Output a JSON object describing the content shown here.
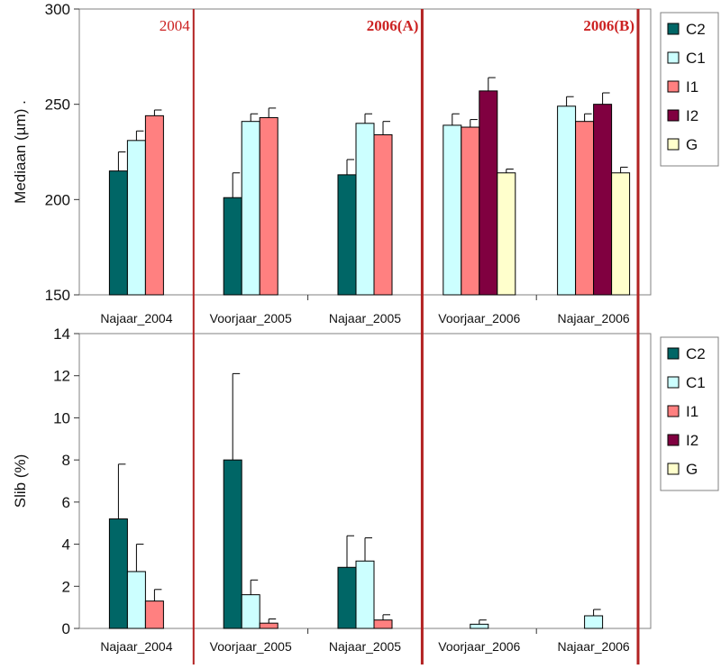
{
  "colors": {
    "C2": "#006666",
    "C1": "#ccffff",
    "I1": "#ff8080",
    "I2": "#800040",
    "G": "#ffffcc",
    "marker_line": "#b22222",
    "marker_text": "#cc2222"
  },
  "markers": [
    {
      "label": "2004",
      "after_category": 0,
      "bold": false
    },
    {
      "label": "2006(A)",
      "after_category": 2,
      "bold": true
    },
    {
      "label": "2006(B)",
      "after_category": 4,
      "bold": true
    }
  ],
  "chart_data": [
    {
      "type": "bar",
      "ylabel": "Mediaan (µm) .",
      "ylim": [
        150,
        300
      ],
      "yticks": [
        150,
        200,
        250,
        300
      ],
      "categories": [
        "Najaar_2004",
        "Voorjaar_2005",
        "Najaar_2005",
        "Voorjaar_2006",
        "Najaar_2006"
      ],
      "legend_position": "right",
      "series": [
        {
          "name": "C2",
          "values": [
            215,
            201,
            213,
            null,
            null
          ],
          "errors": [
            10,
            13,
            8,
            null,
            null
          ]
        },
        {
          "name": "C1",
          "values": [
            231,
            241,
            240,
            239,
            249
          ],
          "errors": [
            5,
            4,
            5,
            6,
            5
          ]
        },
        {
          "name": "I1",
          "values": [
            244,
            243,
            234,
            238,
            241
          ],
          "errors": [
            3,
            5,
            7,
            4,
            4
          ]
        },
        {
          "name": "I2",
          "values": [
            null,
            null,
            null,
            257,
            250
          ],
          "errors": [
            null,
            null,
            null,
            7,
            6
          ]
        },
        {
          "name": "G",
          "values": [
            null,
            null,
            null,
            214,
            214
          ],
          "errors": [
            null,
            null,
            null,
            2,
            3
          ]
        }
      ]
    },
    {
      "type": "bar",
      "ylabel": "Slib (%)",
      "ylim": [
        0,
        14
      ],
      "yticks": [
        0,
        2,
        4,
        6,
        8,
        10,
        12,
        14
      ],
      "categories": [
        "Najaar_2004",
        "Voorjaar_2005",
        "Najaar_2005",
        "Voorjaar_2006",
        "Najaar_2006"
      ],
      "legend_position": "right",
      "series": [
        {
          "name": "C2",
          "values": [
            5.2,
            8.0,
            2.9,
            null,
            null
          ],
          "errors": [
            2.6,
            4.1,
            1.5,
            null,
            null
          ]
        },
        {
          "name": "C1",
          "values": [
            2.7,
            1.6,
            3.2,
            0.2,
            0.6
          ],
          "errors": [
            1.3,
            0.7,
            1.1,
            0.2,
            0.3
          ]
        },
        {
          "name": "I1",
          "values": [
            1.3,
            0.25,
            0.4,
            null,
            null
          ],
          "errors": [
            0.55,
            0.2,
            0.25,
            null,
            null
          ]
        },
        {
          "name": "I2",
          "values": [
            null,
            null,
            null,
            null,
            null
          ],
          "errors": [
            null,
            null,
            null,
            null,
            null
          ]
        },
        {
          "name": "G",
          "values": [
            null,
            null,
            null,
            null,
            null
          ],
          "errors": [
            null,
            null,
            null,
            null,
            null
          ]
        }
      ]
    }
  ]
}
